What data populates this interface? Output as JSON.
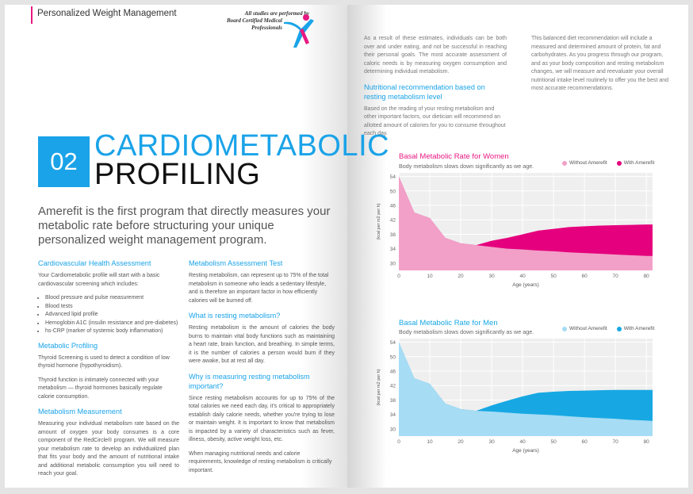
{
  "header": {
    "section_title": "Personalized Weight Management",
    "badge_line1": "All studies are performed by",
    "badge_line2": "Board Certified Medical Professionals"
  },
  "hero": {
    "number": "02",
    "title_line1": "CARDIOMETABOLIC",
    "title_line2": "PROFILING",
    "lead": "Amerefit is the first program that directly measures your metabolic rate before structuring your unique personalized weight management program."
  },
  "col1": {
    "h1": "Cardiovascular Health Assessment",
    "p1": "Your Cardiometabolic profile will start with a basic cardiovascular screening which includes:",
    "bullets": [
      "Blood pressure and pulse measurement",
      "Blood tests",
      "Advanced lipid profile",
      "Hemoglobin A1C (insulin resistance and pre-diabetes)",
      "hs-CRP (marker of systemic body inflammation)"
    ],
    "h2": "Metabolic Profiling",
    "p2": "Thyroid Screening is used to detect a condition of low thyroid hormone (hypothyroidism).",
    "p3": "Thyroid function is intimately connected with your metabolism — thyroid hormones basically regulate calorie consumption.",
    "h3": "Metabolism Measurement",
    "p4": "Measuring your individual metabolism rate based on the amount of oxygen your body consumes is a core component of the RedCircle® program. We will measure your metabolism rate to develop an individualized plan that fits your body and the amount of nutritional intake and additional metabolic consumption you will need to reach your goal."
  },
  "col2": {
    "h1": "Metabolism Assessment Test",
    "p1": "Resting metabolism, can represent up to 75% of the total metabolism in someone who leads a sedentary lifestyle, and is therefore an important factor in how efficiently calories will be burned off.",
    "h2": "What is resting metabolism?",
    "p2": "Resting metabolism is the amount of calories the body burns to maintain vital body functions such as maintaining a heart rate, brain function, and breathing. In simple terms, it is the number of calories a person would burn if they were awake, but at rest all day.",
    "h3": "Why is measuring resting metabolism important?",
    "p3": "Since resting metabolism accounts for up to 75% of the total calories we need each day, it's critical to appropriately establish daily calorie needs, whether you're trying to lose or maintain weight. It is important to know that metabolism is impacted by a variety of characteristics such as fever, illness, obesity, active weight loss, etc.",
    "p4": "When managing nutritional needs and calorie requirements, knowledge of resting metabolism is critically important."
  },
  "col3": {
    "p1": "As a result of these estimates, individuals can be both over and under eating, and not be successful in reaching their personal goals. The most accurate assessment of caloric needs is by measuring oxygen consumption and determining individual metabolism.",
    "h1": "Nutritional recommendation based on resting metabolism level",
    "p2": "Based on the reading of your resting metabolism and other important factors, our dietician will recommend an allotted amount of calories for you to consume throughout each day."
  },
  "col4": {
    "p1": "This balanced diet recommendation will include a measured and determined amount of protein, fat and carbohydrates. As you progress through our program, and as your body composition and resting metabolism changes, we will measure and reevaluate your overall nutritional intake level routinely to offer you the best and most accurate recommendations."
  },
  "colors": {
    "accent": "#1aa3e8",
    "magenta": "#e5007d",
    "pink": "#f2a0c8",
    "blue": "#17a8e3",
    "light_blue": "#a6dcf4"
  },
  "chart_data": [
    {
      "type": "area",
      "title": "Basal Metabolic Rate for Women",
      "subtitle": "Body metabolism slows down significantly as we age.",
      "xlabel": "Age (years)",
      "ylabel": "(kcal per m2 per h)",
      "x": [
        0,
        5,
        10,
        15,
        20,
        25,
        30,
        35,
        40,
        45,
        50,
        55,
        60,
        65,
        70,
        75,
        80,
        82
      ],
      "xlim": [
        0,
        82
      ],
      "ylim": [
        28,
        55
      ],
      "xticks": [
        0,
        10,
        20,
        30,
        40,
        50,
        60,
        70,
        80
      ],
      "yticks": [
        30,
        34,
        38,
        42,
        46,
        50,
        54
      ],
      "legend_position": "top-right",
      "colors": [
        "#f2a0c8",
        "#e5007d"
      ],
      "series": [
        {
          "name": "Without Amerefit",
          "values": [
            54,
            44,
            42.5,
            37,
            35.5,
            35,
            34.5,
            34,
            33.8,
            33.5,
            33.3,
            33,
            32.8,
            32.6,
            32.4,
            32.2,
            32,
            32
          ]
        },
        {
          "name": "With Amerefit",
          "values": [
            54,
            44,
            42.5,
            37,
            35.5,
            35,
            36.2,
            37,
            38,
            39,
            39.5,
            40,
            40.2,
            40.4,
            40.5,
            40.6,
            40.7,
            40.7
          ]
        }
      ]
    },
    {
      "type": "area",
      "title": "Basal Metabolic Rate for Men",
      "subtitle": "Body metabolism slows down significantly as we age.",
      "xlabel": "Age (years)",
      "ylabel": "(kcal per m2 per h)",
      "x": [
        0,
        5,
        10,
        15,
        20,
        25,
        30,
        35,
        40,
        45,
        50,
        55,
        60,
        65,
        70,
        75,
        80,
        82
      ],
      "xlim": [
        0,
        82
      ],
      "ylim": [
        28,
        55
      ],
      "xticks": [
        0,
        10,
        20,
        30,
        40,
        50,
        60,
        70,
        80
      ],
      "yticks": [
        30,
        34,
        38,
        42,
        46,
        50,
        54
      ],
      "legend_position": "top-right",
      "colors": [
        "#a6dcf4",
        "#17a8e3"
      ],
      "series": [
        {
          "name": "Without Amerefit",
          "values": [
            54,
            44,
            42.5,
            37,
            35.5,
            35,
            34.8,
            34.5,
            34.2,
            34,
            33.8,
            33.5,
            33.2,
            33,
            32.8,
            32.5,
            32.3,
            32.2
          ]
        },
        {
          "name": "With Amerefit",
          "values": [
            54,
            44,
            42.5,
            37,
            35.5,
            35,
            36.5,
            37.8,
            39,
            40,
            40.3,
            40.5,
            40.6,
            40.7,
            40.8,
            40.8,
            40.8,
            40.8
          ]
        }
      ]
    }
  ]
}
